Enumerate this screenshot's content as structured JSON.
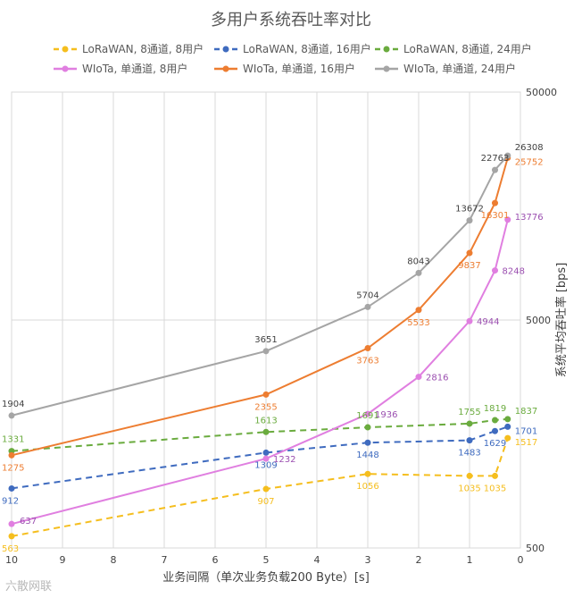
{
  "chart_data": {
    "type": "line",
    "title": "多用户系统吞吐率对比",
    "xlabel": "业务间隔（单次业务负载200 Byte）[s]",
    "ylabel": "系统平均吞吐率 [bps]",
    "x_ticks": [
      10,
      9,
      8,
      7,
      6,
      5,
      4,
      3,
      2,
      1,
      0
    ],
    "x_reversed": true,
    "xlim": [
      10,
      0
    ],
    "y_scale": "log",
    "ylim": [
      500,
      50000
    ],
    "y_ticks": [
      500,
      5000,
      50000
    ],
    "grid": true,
    "legend": "top",
    "x": [
      10,
      5,
      3,
      2,
      1,
      0.5,
      0.25
    ],
    "series": [
      {
        "name": "LoRaWAN, 8通道, 8用户",
        "color": "#f5be1e",
        "dash": true,
        "labeled_x": [
          10,
          5,
          3,
          1,
          0.5,
          0.25
        ],
        "label_pos": "below",
        "points": [
          [
            10,
            563
          ],
          [
            5,
            907
          ],
          [
            3,
            1056
          ],
          [
            1,
            1035
          ],
          [
            0.5,
            1035
          ],
          [
            0.25,
            1517
          ]
        ]
      },
      {
        "name": "LoRaWAN, 8通道, 16用户",
        "color": "#3f6bbf",
        "dash": true,
        "labeled_x": [
          10,
          5,
          3,
          1,
          0.5,
          0.25
        ],
        "label_pos": "below",
        "points": [
          [
            10,
            912
          ],
          [
            5,
            1309
          ],
          [
            3,
            1448
          ],
          [
            1,
            1483
          ],
          [
            0.5,
            1629
          ],
          [
            0.25,
            1701
          ]
        ]
      },
      {
        "name": "LoRaWAN, 8通道, 24用户",
        "color": "#6aab3e",
        "dash": true,
        "labeled_x": [
          10,
          5,
          3,
          1,
          0.5,
          0.25
        ],
        "label_pos": "above",
        "points": [
          [
            10,
            1331
          ],
          [
            5,
            1613
          ],
          [
            3,
            1691
          ],
          [
            1,
            1755
          ],
          [
            0.5,
            1819
          ],
          [
            0.25,
            1837
          ]
        ]
      },
      {
        "name": "WIoTa, 单通道, 8用户",
        "color": "#e07fe0",
        "dash": false,
        "labeled_x": [
          10,
          5,
          3,
          2,
          1,
          0.5,
          0.25
        ],
        "label_pos": "right",
        "points": [
          [
            10,
            637
          ],
          [
            5,
            1232
          ],
          [
            3,
            1936
          ],
          [
            2,
            2816
          ],
          [
            1,
            4944
          ],
          [
            0.5,
            8248
          ],
          [
            0.25,
            13776
          ]
        ]
      },
      {
        "name": "WIoTa, 单通道, 16用户",
        "color": "#ed7d31",
        "dash": false,
        "labeled_x": [
          10,
          5,
          3,
          2,
          1,
          0.5,
          0.25
        ],
        "label_pos": "below",
        "points": [
          [
            10,
            1275
          ],
          [
            5,
            2355
          ],
          [
            3,
            3763
          ],
          [
            2,
            5533
          ],
          [
            1,
            9837
          ],
          [
            0.5,
            16301
          ],
          [
            0.25,
            25752
          ]
        ]
      },
      {
        "name": "WIoTa, 单通道, 24用户",
        "color": "#a5a5a5",
        "dash": false,
        "labeled_x": [
          10,
          5,
          3,
          2,
          1,
          0.5,
          0.25
        ],
        "label_pos": "above",
        "points": [
          [
            10,
            1904
          ],
          [
            5,
            3651
          ],
          [
            3,
            5704
          ],
          [
            2,
            8043
          ],
          [
            1,
            13672
          ],
          [
            0.5,
            22763
          ],
          [
            0.25,
            26308
          ]
        ]
      }
    ]
  }
}
